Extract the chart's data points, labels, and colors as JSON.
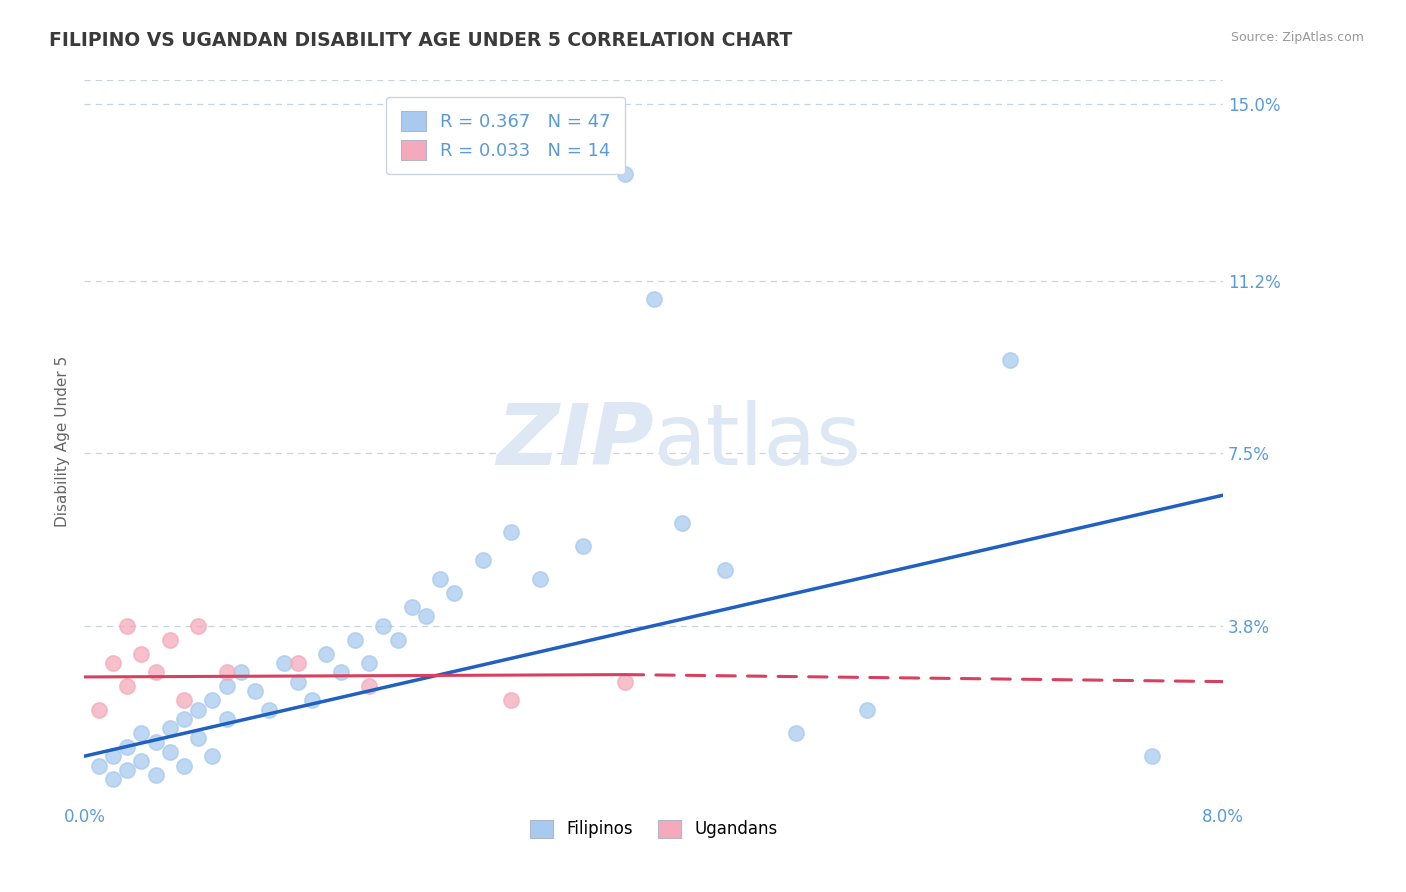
{
  "title": "FILIPINO VS UGANDAN DISABILITY AGE UNDER 5 CORRELATION CHART",
  "source": "Source: ZipAtlas.com",
  "ylabel": "Disability Age Under 5",
  "xlim": [
    0.0,
    0.08
  ],
  "ylim": [
    0.0,
    0.155
  ],
  "yticks": [
    0.038,
    0.075,
    0.112,
    0.15
  ],
  "ytick_labels": [
    "3.8%",
    "7.5%",
    "11.2%",
    "15.0%"
  ],
  "xtick_labels": [
    "0.0%",
    "8.0%"
  ],
  "title_color": "#3a3a3a",
  "axis_color": "#5b9bd5",
  "grid_color": "#c8d4e0",
  "legend_R_filipino": "R = 0.367",
  "legend_N_filipino": "N = 47",
  "legend_R_ugandan": "R = 0.033",
  "legend_N_ugandan": "N = 14",
  "filipino_color": "#a8caee",
  "ugandan_color": "#f4aabb",
  "filipino_line_color": "#2060c0",
  "ugandan_line_color": "#d84060",
  "watermark_color": "#dde8f4",
  "filipino_x": [
    0.001,
    0.002,
    0.002,
    0.003,
    0.003,
    0.004,
    0.004,
    0.005,
    0.005,
    0.006,
    0.006,
    0.007,
    0.007,
    0.008,
    0.008,
    0.009,
    0.009,
    0.01,
    0.01,
    0.011,
    0.012,
    0.013,
    0.014,
    0.015,
    0.016,
    0.017,
    0.018,
    0.019,
    0.02,
    0.021,
    0.022,
    0.023,
    0.024,
    0.025,
    0.026,
    0.028,
    0.03,
    0.032,
    0.035,
    0.038,
    0.04,
    0.042,
    0.045,
    0.05,
    0.055,
    0.065,
    0.075
  ],
  "filipino_y": [
    0.008,
    0.01,
    0.005,
    0.012,
    0.007,
    0.015,
    0.009,
    0.013,
    0.006,
    0.016,
    0.011,
    0.018,
    0.008,
    0.02,
    0.014,
    0.022,
    0.01,
    0.025,
    0.018,
    0.028,
    0.024,
    0.02,
    0.03,
    0.026,
    0.022,
    0.032,
    0.028,
    0.035,
    0.03,
    0.038,
    0.035,
    0.042,
    0.04,
    0.048,
    0.045,
    0.052,
    0.058,
    0.048,
    0.055,
    0.135,
    0.108,
    0.06,
    0.05,
    0.015,
    0.02,
    0.095,
    0.01
  ],
  "ugandan_x": [
    0.001,
    0.002,
    0.003,
    0.003,
    0.004,
    0.005,
    0.006,
    0.007,
    0.008,
    0.01,
    0.015,
    0.02,
    0.03,
    0.038
  ],
  "ugandan_y": [
    0.02,
    0.03,
    0.025,
    0.038,
    0.032,
    0.028,
    0.035,
    0.022,
    0.038,
    0.028,
    0.03,
    0.025,
    0.022,
    0.026
  ]
}
